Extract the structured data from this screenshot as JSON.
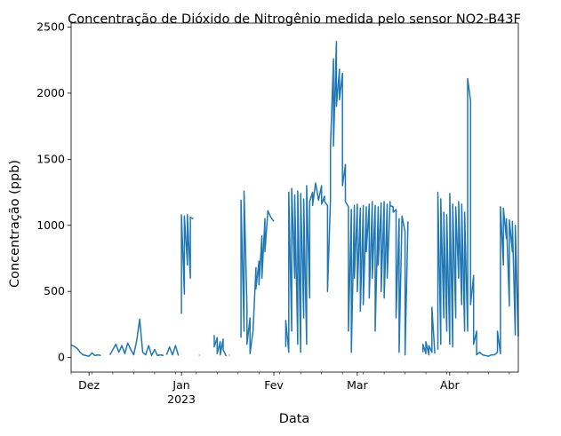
{
  "chart_data": {
    "type": "line",
    "title": "Concentração de Dióxido de Nitrogênio medida pelo sensor NO2-B43F",
    "xlabel": "Data",
    "ylabel": "Concentração (ppb)",
    "xlim": [
      "2022-11-25",
      "2023-04-24"
    ],
    "ylim": [
      -110,
      2530
    ],
    "yticks": [
      0,
      500,
      1000,
      1500,
      2000,
      2500
    ],
    "xticks": [
      {
        "date": "2022-12-01",
        "label": "Dez",
        "sublabel": ""
      },
      {
        "date": "2023-01-01",
        "label": "Jan",
        "sublabel": "2023"
      },
      {
        "date": "2023-02-01",
        "label": "Fev",
        "sublabel": ""
      },
      {
        "date": "2023-03-01",
        "label": "Mar",
        "sublabel": ""
      },
      {
        "date": "2023-04-01",
        "label": "Abr",
        "sublabel": ""
      }
    ],
    "grid": false,
    "color": "#1f77b4",
    "series": [
      {
        "segments": [
          [
            [
              "2022-11-25",
              95
            ],
            [
              "2022-11-26",
              85
            ],
            [
              "2022-11-27",
              70
            ],
            [
              "2022-11-28",
              40
            ],
            [
              "2022-11-29",
              20
            ],
            [
              "2022-11-30",
              15
            ],
            [
              "2022-12-01",
              10
            ],
            [
              "2022-12-02",
              35
            ],
            [
              "2022-12-03",
              15
            ],
            [
              "2022-12-04",
              20
            ],
            [
              "2022-12-05",
              15
            ]
          ],
          [
            [
              "2022-12-08",
              20
            ],
            [
              "2022-12-09",
              60
            ],
            [
              "2022-12-10",
              100
            ],
            [
              "2022-12-11",
              40
            ],
            [
              "2022-12-12",
              90
            ],
            [
              "2022-12-13",
              30
            ],
            [
              "2022-12-14",
              110
            ],
            [
              "2022-12-15",
              60
            ],
            [
              "2022-12-16",
              20
            ],
            [
              "2022-12-17",
              130
            ],
            [
              "2022-12-18",
              290
            ],
            [
              "2022-12-19",
              40
            ],
            [
              "2022-12-20",
              20
            ],
            [
              "2022-12-21",
              90
            ],
            [
              "2022-12-22",
              15
            ],
            [
              "2022-12-23",
              60
            ],
            [
              "2022-12-24",
              15
            ],
            [
              "2022-12-25",
              20
            ],
            [
              "2022-12-26",
              15
            ]
          ],
          [
            [
              "2022-12-27",
              20
            ],
            [
              "2022-12-28",
              80
            ],
            [
              "2022-12-29",
              20
            ],
            [
              "2022-12-30",
              90
            ],
            [
              "2022-12-31",
              15
            ]
          ],
          [
            [
              "2023-01-01",
              330
            ],
            [
              "2023-01-01",
              1080
            ],
            [
              "2023-01-02",
              480
            ],
            [
              "2023-01-02",
              1070
            ],
            [
              "2023-01-03",
              700
            ],
            [
              "2023-01-03",
              1080
            ],
            [
              "2023-01-04",
              600
            ],
            [
              "2023-01-04",
              1060
            ],
            [
              "2023-01-05",
              1050
            ]
          ],
          [
            [
              "2023-01-07",
              15
            ],
            [
              "2023-01-07",
              20
            ]
          ],
          [
            [
              "2023-01-12",
              170
            ],
            [
              "2023-01-12",
              80
            ],
            [
              "2023-01-13",
              150
            ],
            [
              "2023-01-13",
              30
            ],
            [
              "2023-01-14",
              120
            ],
            [
              "2023-01-14",
              20
            ],
            [
              "2023-01-15",
              140
            ],
            [
              "2023-01-15",
              60
            ],
            [
              "2023-01-16",
              10
            ]
          ],
          [
            [
              "2023-01-17",
              15
            ],
            [
              "2023-01-17",
              20
            ]
          ],
          [
            [
              "2023-01-21",
              150
            ],
            [
              "2023-01-21",
              1190
            ],
            [
              "2023-01-22",
              200
            ],
            [
              "2023-01-22",
              1260
            ],
            [
              "2023-01-23",
              380
            ],
            [
              "2023-01-23",
              100
            ],
            [
              "2023-01-24",
              300
            ],
            [
              "2023-01-24",
              30
            ],
            [
              "2023-01-25",
              200
            ],
            [
              "2023-01-26",
              680
            ],
            [
              "2023-01-26",
              520
            ],
            [
              "2023-01-27",
              730
            ],
            [
              "2023-01-27",
              550
            ],
            [
              "2023-01-28",
              920
            ],
            [
              "2023-01-28",
              600
            ],
            [
              "2023-01-29",
              1050
            ],
            [
              "2023-01-29",
              800
            ],
            [
              "2023-01-30",
              1110
            ],
            [
              "2023-01-31",
              1060
            ],
            [
              "2023-02-01",
              1030
            ]
          ],
          [
            [
              "2023-02-05",
              80
            ],
            [
              "2023-02-05",
              280
            ],
            [
              "2023-02-06",
              40
            ],
            [
              "2023-02-06",
              1250
            ],
            [
              "2023-02-07",
              200
            ],
            [
              "2023-02-07",
              1280
            ],
            [
              "2023-02-08",
              600
            ],
            [
              "2023-02-08",
              1230
            ],
            [
              "2023-02-09",
              100
            ],
            [
              "2023-02-09",
              1260
            ],
            [
              "2023-02-10",
              40
            ],
            [
              "2023-02-10",
              1240
            ],
            [
              "2023-02-11",
              300
            ],
            [
              "2023-02-11",
              1200
            ],
            [
              "2023-02-12",
              100
            ],
            [
              "2023-02-12",
              1300
            ],
            [
              "2023-02-13",
              450
            ],
            [
              "2023-02-13",
              1180
            ],
            [
              "2023-02-14",
              1250
            ],
            [
              "2023-02-14",
              1150
            ],
            [
              "2023-02-15",
              1320
            ],
            [
              "2023-02-16",
              1190
            ],
            [
              "2023-02-17",
              1300
            ],
            [
              "2023-02-17",
              1160
            ],
            [
              "2023-02-18",
              1220
            ],
            [
              "2023-02-18",
              1180
            ],
            [
              "2023-02-19",
              1150
            ],
            [
              "2023-02-19",
              500
            ],
            [
              "2023-02-20",
              1190
            ],
            [
              "2023-02-20",
              1590
            ],
            [
              "2023-02-21",
              2260
            ],
            [
              "2023-02-21",
              1600
            ],
            [
              "2023-02-22",
              2390
            ],
            [
              "2023-02-22",
              1900
            ],
            [
              "2023-02-23",
              2180
            ],
            [
              "2023-02-23",
              1950
            ],
            [
              "2023-02-24",
              2150
            ],
            [
              "2023-02-24",
              1300
            ],
            [
              "2023-02-25",
              1460
            ],
            [
              "2023-02-25",
              1180
            ],
            [
              "2023-02-26",
              1140
            ],
            [
              "2023-02-26",
              200
            ],
            [
              "2023-02-27",
              1120
            ],
            [
              "2023-02-27",
              40
            ],
            [
              "2023-02-28",
              1150
            ],
            [
              "2023-02-28",
              600
            ],
            [
              "2023-03-01",
              1160
            ],
            [
              "2023-03-01",
              500
            ],
            [
              "2023-03-02",
              1130
            ],
            [
              "2023-03-02",
              350
            ],
            [
              "2023-03-03",
              1150
            ],
            [
              "2023-03-03",
              400
            ],
            [
              "2023-03-04",
              1140
            ],
            [
              "2023-03-04",
              800
            ],
            [
              "2023-03-05",
              1160
            ],
            [
              "2023-03-05",
              450
            ],
            [
              "2023-03-06",
              1180
            ],
            [
              "2023-03-06",
              600
            ],
            [
              "2023-03-07",
              1150
            ],
            [
              "2023-03-07",
              200
            ],
            [
              "2023-03-08",
              1140
            ],
            [
              "2023-03-08",
              700
            ],
            [
              "2023-03-09",
              1170
            ],
            [
              "2023-03-09",
              500
            ],
            [
              "2023-03-10",
              1180
            ],
            [
              "2023-03-10",
              450
            ],
            [
              "2023-03-11",
              1160
            ],
            [
              "2023-03-11",
              600
            ],
            [
              "2023-03-12",
              1180
            ],
            [
              "2023-03-12",
              1150
            ],
            [
              "2023-03-13",
              1140
            ],
            [
              "2023-03-13",
              1100
            ],
            [
              "2023-03-14",
              1120
            ],
            [
              "2023-03-14",
              300
            ],
            [
              "2023-03-15",
              1050
            ],
            [
              "2023-03-15",
              40
            ],
            [
              "2023-03-16",
              1070
            ],
            [
              "2023-03-17",
              950
            ],
            [
              "2023-03-17",
              20
            ],
            [
              "2023-03-18",
              1030
            ]
          ],
          [
            [
              "2023-03-23",
              40
            ],
            [
              "2023-03-23",
              100
            ],
            [
              "2023-03-24",
              30
            ],
            [
              "2023-03-24",
              120
            ],
            [
              "2023-03-25",
              20
            ],
            [
              "2023-03-25",
              90
            ],
            [
              "2023-03-26",
              40
            ],
            [
              "2023-03-26",
              380
            ],
            [
              "2023-03-27",
              30
            ]
          ],
          [
            [
              "2023-03-28",
              60
            ],
            [
              "2023-03-28",
              1250
            ],
            [
              "2023-03-29",
              100
            ],
            [
              "2023-03-29",
              1200
            ],
            [
              "2023-03-30",
              300
            ],
            [
              "2023-03-30",
              1100
            ],
            [
              "2023-03-31",
              200
            ],
            [
              "2023-03-31",
              1080
            ],
            [
              "2023-04-01",
              100
            ],
            [
              "2023-04-01",
              1240
            ],
            [
              "2023-04-02",
              80
            ],
            [
              "2023-04-02",
              1160
            ],
            [
              "2023-04-03",
              300
            ],
            [
              "2023-04-03",
              1140
            ],
            [
              "2023-04-04",
              600
            ],
            [
              "2023-04-04",
              1180
            ],
            [
              "2023-04-05",
              400
            ],
            [
              "2023-04-05",
              1160
            ],
            [
              "2023-04-06",
              200
            ],
            [
              "2023-04-06",
              1100
            ],
            [
              "2023-04-07",
              200
            ],
            [
              "2023-04-07",
              2110
            ],
            [
              "2023-04-08",
              1940
            ],
            [
              "2023-04-08",
              400
            ],
            [
              "2023-04-09",
              620
            ],
            [
              "2023-04-09",
              100
            ],
            [
              "2023-04-10",
              200
            ],
            [
              "2023-04-10",
              20
            ],
            [
              "2023-04-11",
              40
            ],
            [
              "2023-04-12",
              20
            ],
            [
              "2023-04-13",
              15
            ],
            [
              "2023-04-14",
              10
            ],
            [
              "2023-04-15",
              20
            ],
            [
              "2023-04-16",
              20
            ],
            [
              "2023-04-17",
              40
            ],
            [
              "2023-04-17",
              200
            ],
            [
              "2023-04-18",
              30
            ],
            [
              "2023-04-18",
              1140
            ],
            [
              "2023-04-19",
              700
            ],
            [
              "2023-04-19",
              1130
            ],
            [
              "2023-04-20",
              900
            ],
            [
              "2023-04-20",
              1050
            ],
            [
              "2023-04-21",
              390
            ],
            [
              "2023-04-21",
              1040
            ],
            [
              "2023-04-22",
              800
            ],
            [
              "2023-04-22",
              1030
            ],
            [
              "2023-04-23",
              170
            ],
            [
              "2023-04-23",
              1000
            ],
            [
              "2023-04-24",
              160
            ]
          ]
        ]
      }
    ]
  }
}
